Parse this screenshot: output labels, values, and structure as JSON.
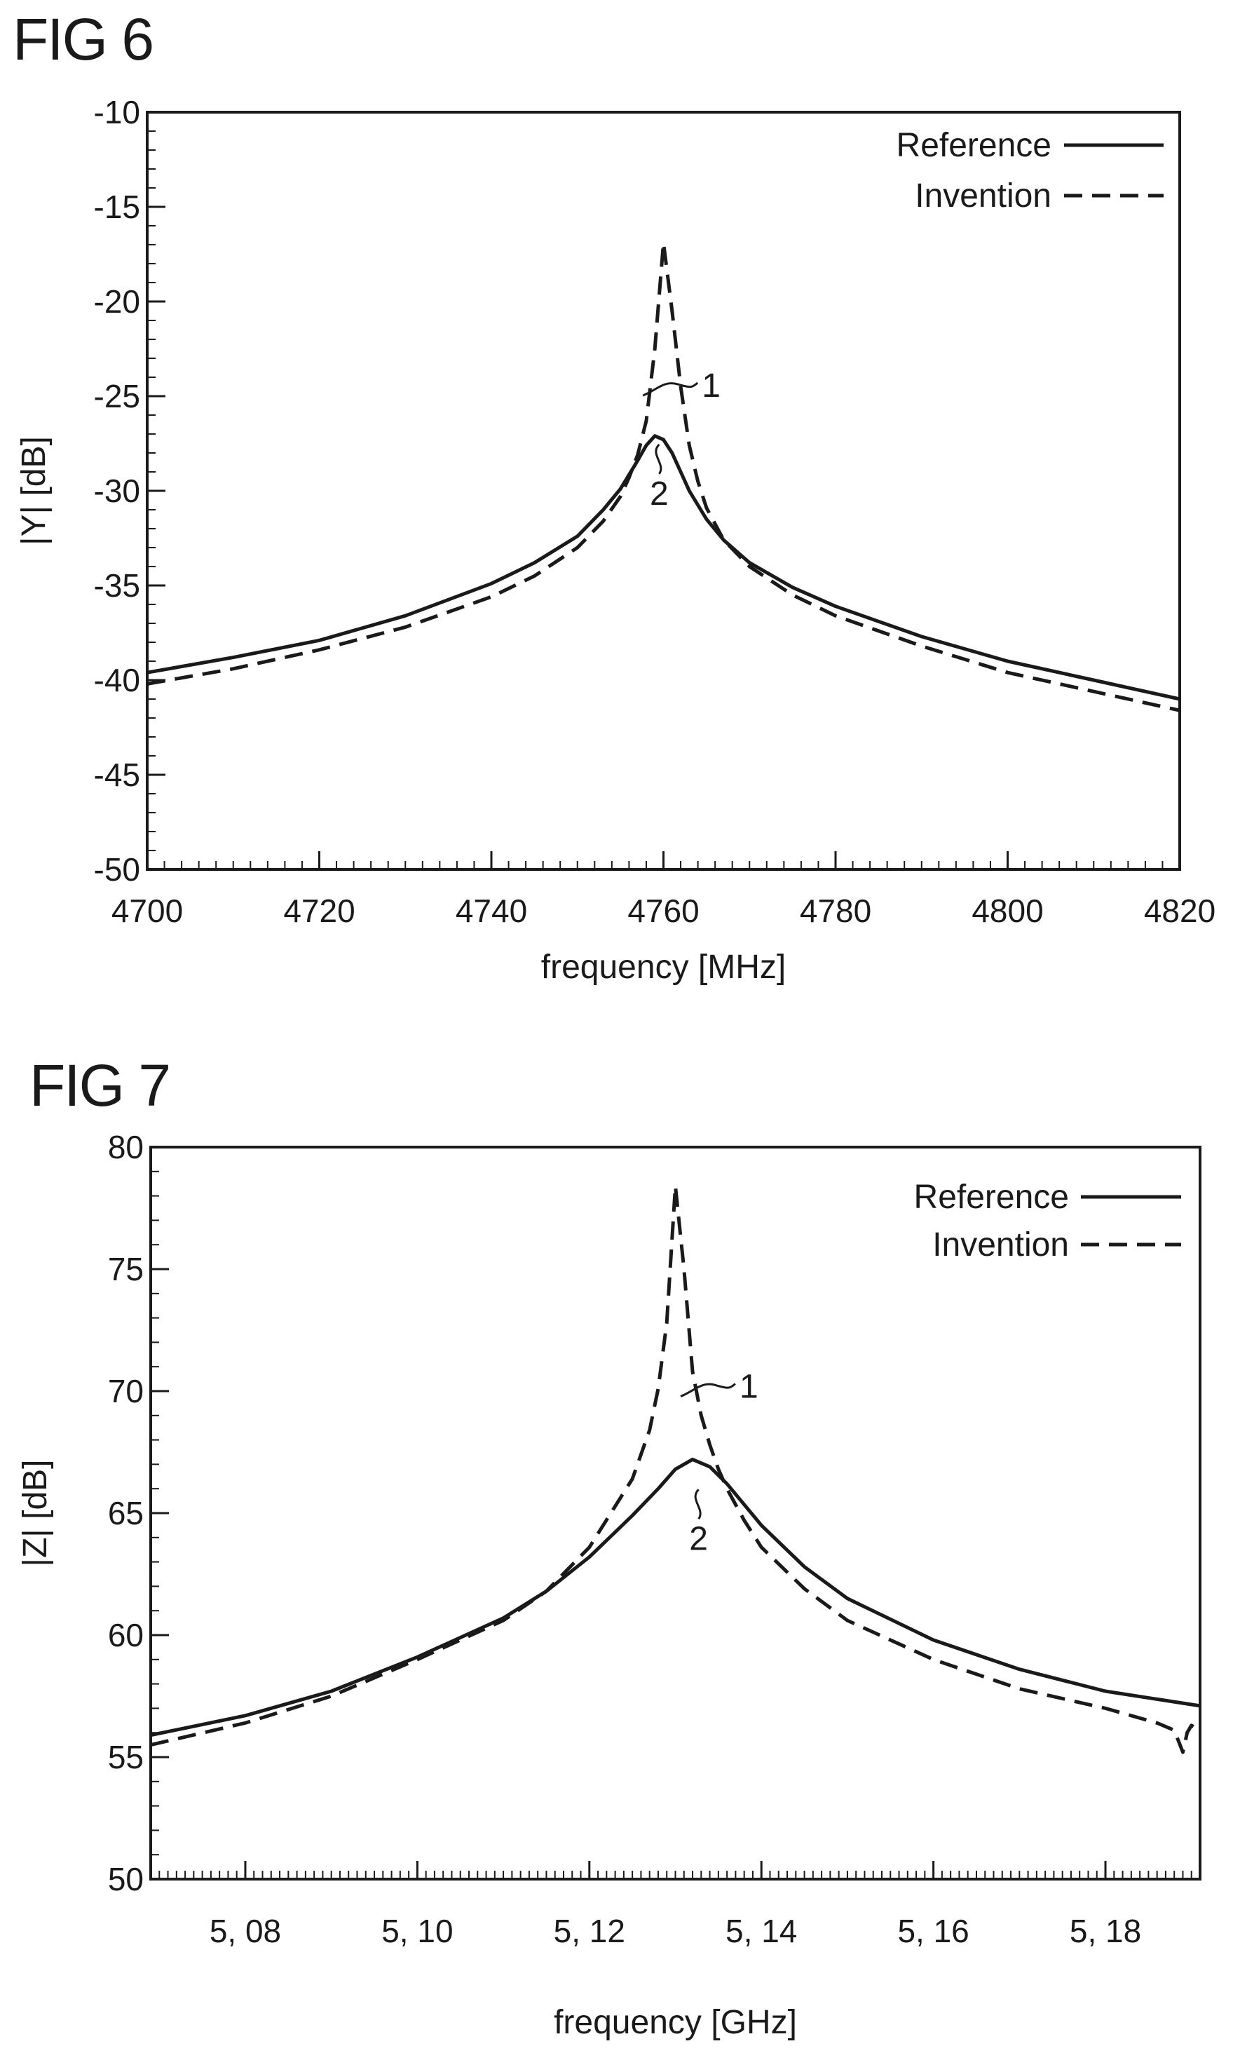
{
  "figures": [
    {
      "title": "FIG 6"
    },
    {
      "title": "FIG 7"
    }
  ],
  "chart_data": [
    {
      "type": "line",
      "xlabel": "frequency [MHz]",
      "ylabel": "|Y| [dB]",
      "xlim": [
        4700,
        4820
      ],
      "ylim": [
        -50,
        -10
      ],
      "xticks": [
        4700,
        4720,
        4740,
        4760,
        4780,
        4800,
        4820
      ],
      "xtick_labels": [
        "4700",
        "4720",
        "4740",
        "4760",
        "4780",
        "4800",
        "4820"
      ],
      "yticks": [
        -10,
        -15,
        -20,
        -25,
        -30,
        -35,
        -40,
        -45,
        -50
      ],
      "ytick_labels": [
        "-10",
        "-15",
        "-20",
        "-25",
        "-30",
        "-35",
        "-40",
        "-45",
        "-50"
      ],
      "x_minor_step": 2,
      "y_minor_step": 1,
      "legend": {
        "position": "top-right"
      },
      "series": [
        {
          "name": "Reference",
          "style": "solid",
          "x": [
            4700,
            4710,
            4720,
            4730,
            4740,
            4745,
            4750,
            4753,
            4755,
            4757,
            4758,
            4759,
            4760,
            4761,
            4762,
            4763,
            4765,
            4767,
            4770,
            4775,
            4780,
            4790,
            4800,
            4810,
            4820
          ],
          "y": [
            -39.6,
            -38.8,
            -37.9,
            -36.6,
            -34.9,
            -33.8,
            -32.4,
            -31.0,
            -29.9,
            -28.4,
            -27.6,
            -27.1,
            -27.3,
            -28.0,
            -29.0,
            -30.0,
            -31.5,
            -32.6,
            -33.8,
            -35.1,
            -36.1,
            -37.7,
            -39.0,
            -40.0,
            -41.0
          ]
        },
        {
          "name": "Invention",
          "style": "dashed",
          "x": [
            4700,
            4710,
            4720,
            4730,
            4740,
            4745,
            4750,
            4753,
            4755,
            4756,
            4757,
            4758,
            4759,
            4760,
            4761,
            4762,
            4763,
            4764,
            4765,
            4767,
            4770,
            4775,
            4780,
            4790,
            4800,
            4810,
            4820
          ],
          "y": [
            -40.2,
            -39.4,
            -38.4,
            -37.2,
            -35.6,
            -34.5,
            -33.0,
            -31.6,
            -30.3,
            -29.3,
            -28.1,
            -26.3,
            -22.5,
            -16.9,
            -20.5,
            -24.5,
            -27.6,
            -29.5,
            -30.9,
            -32.6,
            -34.0,
            -35.5,
            -36.6,
            -38.2,
            -39.6,
            -40.6,
            -41.6
          ]
        }
      ],
      "annotations": [
        {
          "text": "1",
          "x": 4762.5,
          "y": -24.3
        },
        {
          "text": "2",
          "x": 4759.5,
          "y": -29.7
        }
      ]
    },
    {
      "type": "line",
      "xlabel": "frequency [GHz]",
      "ylabel": "|Z| [dB]",
      "xlim": [
        5.069,
        5.191
      ],
      "ylim": [
        50,
        80
      ],
      "xticks": [
        5.08,
        5.1,
        5.12,
        5.14,
        5.16,
        5.18
      ],
      "xtick_labels": [
        "5, 08",
        "5, 10",
        "5, 12",
        "5, 14",
        "5, 16",
        "5, 18"
      ],
      "yticks": [
        50,
        55,
        60,
        65,
        70,
        75,
        80
      ],
      "ytick_labels": [
        "50",
        "55",
        "60",
        "65",
        "70",
        "75",
        "80"
      ],
      "x_minor_step": 0.001,
      "y_minor_step": 1,
      "legend": {
        "position": "top-right"
      },
      "series": [
        {
          "name": "Reference",
          "style": "solid",
          "x": [
            5.069,
            5.08,
            5.09,
            5.1,
            5.11,
            5.115,
            5.12,
            5.125,
            5.128,
            5.13,
            5.132,
            5.134,
            5.136,
            5.14,
            5.145,
            5.15,
            5.16,
            5.17,
            5.18,
            5.191
          ],
          "y": [
            55.9,
            56.7,
            57.7,
            59.1,
            60.7,
            61.8,
            63.2,
            64.9,
            66.0,
            66.8,
            67.2,
            66.9,
            66.2,
            64.5,
            62.8,
            61.5,
            59.8,
            58.6,
            57.7,
            57.1
          ]
        },
        {
          "name": "Invention",
          "style": "dashed",
          "x": [
            5.069,
            5.08,
            5.09,
            5.1,
            5.11,
            5.115,
            5.12,
            5.125,
            5.127,
            5.128,
            5.129,
            5.13,
            5.131,
            5.132,
            5.133,
            5.134,
            5.135,
            5.136,
            5.138,
            5.14,
            5.145,
            5.15,
            5.16,
            5.17,
            5.18,
            5.186,
            5.188,
            5.189,
            5.1895,
            5.19,
            5.1905
          ],
          "y": [
            55.5,
            56.4,
            57.5,
            59.0,
            60.6,
            61.8,
            63.6,
            66.4,
            68.4,
            70.1,
            72.8,
            78.4,
            75.0,
            70.8,
            69.0,
            67.8,
            66.8,
            66.0,
            64.7,
            63.6,
            61.9,
            60.6,
            59.0,
            57.8,
            57.0,
            56.4,
            56.1,
            55.2,
            56.0,
            56.3,
            56.2
          ]
        }
      ],
      "annotations": [
        {
          "text": "1",
          "x": 5.1355,
          "y": 70.3
        },
        {
          "text": "2",
          "x": 5.1327,
          "y": 64.3
        }
      ]
    }
  ]
}
